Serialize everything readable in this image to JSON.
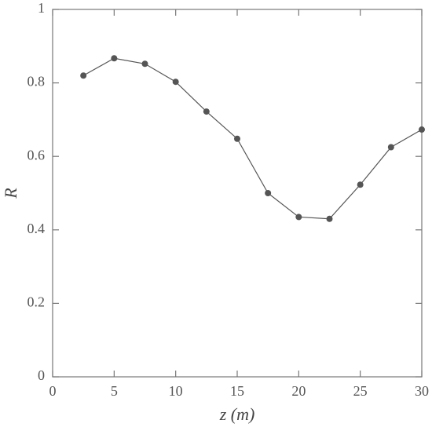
{
  "chart_data": {
    "type": "line",
    "x_label": "z (m)",
    "y_label": "R",
    "x": [
      2.5,
      5,
      7.5,
      10,
      12.5,
      15,
      17.5,
      20,
      22.5,
      25,
      27.5,
      30
    ],
    "series": [
      {
        "color": "#555555",
        "values": [
          0.82,
          0.867,
          0.852,
          0.803,
          0.722,
          0.648,
          0.5,
          0.435,
          0.43,
          0.523,
          0.625,
          0.673
        ]
      }
    ],
    "xlim": [
      0,
      30
    ],
    "xticks": [
      0,
      5,
      10,
      15,
      20,
      25,
      30
    ],
    "ylim": [
      0,
      1
    ],
    "yticks": [
      0,
      0.2,
      0.4,
      0.6,
      0.8,
      1
    ],
    "grid": false
  }
}
